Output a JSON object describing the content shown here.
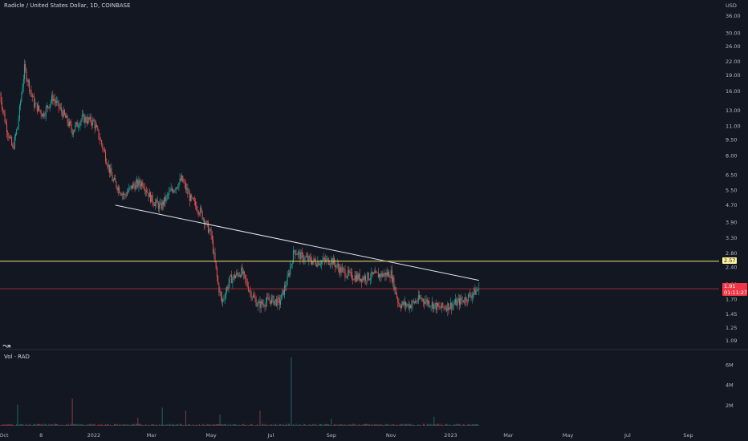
{
  "header": {
    "title": "Radicle / United States Dollar, 1D, COINBASE",
    "currency": "USD",
    "volume_title": "Vol · RAD"
  },
  "badges": {
    "level": "2.57",
    "price": "1.91",
    "countdown": "01:11:27"
  },
  "colors": {
    "background": "#131722",
    "up": "#26a69a",
    "down": "#ef5350",
    "trendline": "#e0e3eb",
    "level_line": "#c4b96b",
    "price_line": "#f23645",
    "divider": "#2a2e39"
  },
  "chart_data": [
    {
      "type": "candlestick",
      "title": "Radicle / United States Dollar, 1D, COINBASE",
      "y_scale": "log",
      "ylim": [
        1.0,
        40.0
      ],
      "y_ticks": [
        "36.00",
        "30.00",
        "26.00",
        "22.00",
        "19.00",
        "16.00",
        "13.00",
        "11.00",
        "9.50",
        "8.00",
        "6.50",
        "5.50",
        "4.70",
        "3.90",
        "3.30",
        "2.80",
        "2.40",
        "2.00",
        "1.70",
        "1.45",
        "1.25",
        "1.09"
      ],
      "x_ticks": [
        "Oct",
        "8",
        "2022",
        "Mar",
        "May",
        "Jul",
        "Sep",
        "Nov",
        "2023",
        "Mar",
        "May",
        "Jul",
        "Sep"
      ],
      "x_range": [
        "2021-09-27",
        "2023-10-01"
      ],
      "last_bar": "2023-01-30",
      "last_price": 1.91,
      "countdown": "01:11:27",
      "series": [
        {
          "name": "price path (approximate close levels)",
          "dates": [
            "2021-09-27",
            "2021-10-03",
            "2021-10-10",
            "2021-10-15",
            "2021-10-22",
            "2021-11-01",
            "2021-11-10",
            "2021-11-20",
            "2021-12-01",
            "2021-12-10",
            "2021-12-20",
            "2022-01-01",
            "2022-01-10",
            "2022-01-20",
            "2022-02-01",
            "2022-02-10",
            "2022-02-20",
            "2022-03-01",
            "2022-03-10",
            "2022-03-20",
            "2022-04-01",
            "2022-04-10",
            "2022-04-20",
            "2022-05-01",
            "2022-05-08",
            "2022-05-12",
            "2022-05-20",
            "2022-06-01",
            "2022-06-10",
            "2022-06-18",
            "2022-07-01",
            "2022-07-10",
            "2022-07-18",
            "2022-07-25",
            "2022-08-01",
            "2022-08-15",
            "2022-09-01",
            "2022-09-10",
            "2022-09-20",
            "2022-10-01",
            "2022-10-15",
            "2022-11-01",
            "2022-11-09",
            "2022-11-20",
            "2022-12-01",
            "2022-12-10",
            "2022-12-20",
            "2023-01-01",
            "2023-01-15",
            "2023-01-30"
          ],
          "close": [
            15.5,
            11.2,
            8.6,
            11.0,
            20.5,
            14.0,
            12.5,
            15.0,
            12.5,
            10.5,
            12.0,
            11.5,
            8.8,
            6.2,
            5.2,
            5.8,
            6.0,
            5.0,
            4.6,
            5.4,
            6.2,
            5.0,
            4.4,
            3.4,
            2.0,
            1.65,
            2.1,
            2.3,
            1.85,
            1.6,
            1.7,
            1.65,
            2.1,
            2.9,
            2.7,
            2.55,
            2.6,
            2.35,
            2.2,
            2.15,
            2.2,
            2.25,
            1.62,
            1.6,
            1.72,
            1.65,
            1.55,
            1.6,
            1.7,
            1.91
          ]
        }
      ],
      "annotations": [
        {
          "type": "trendline",
          "from": {
            "date": "2022-01-23",
            "price": 4.7
          },
          "to": {
            "date": "2023-01-30",
            "price": 2.09
          }
        },
        {
          "type": "horizontal_level",
          "price": 2.57
        },
        {
          "type": "price_line",
          "price": 1.91
        }
      ]
    },
    {
      "type": "bar",
      "title": "Vol · RAD",
      "ylim": [
        0,
        7000000
      ],
      "y_ticks": [
        "6M",
        "4M",
        "2M"
      ],
      "spikes": [
        {
          "date": "2021-10-15",
          "value": 2100000
        },
        {
          "date": "2021-12-10",
          "value": 2700000
        },
        {
          "date": "2022-02-15",
          "value": 800000
        },
        {
          "date": "2022-03-12",
          "value": 1800000
        },
        {
          "date": "2022-04-05",
          "value": 1500000
        },
        {
          "date": "2022-05-10",
          "value": 1100000
        },
        {
          "date": "2022-06-20",
          "value": 1500000
        },
        {
          "date": "2022-07-22",
          "value": 6800000
        },
        {
          "date": "2022-09-01",
          "value": 700000
        },
        {
          "date": "2022-12-15",
          "value": 900000
        }
      ]
    }
  ]
}
